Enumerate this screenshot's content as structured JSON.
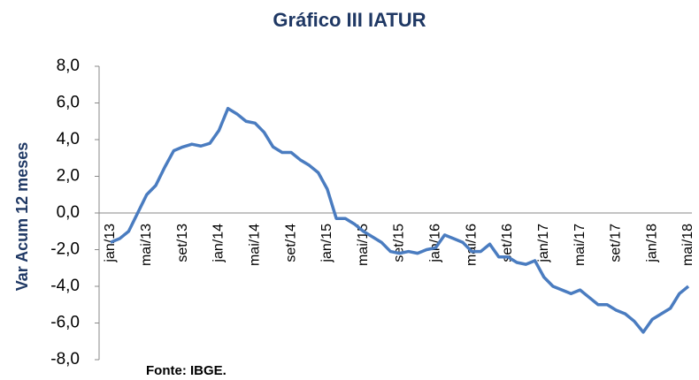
{
  "chart_data": {
    "type": "line",
    "title": "Gráfico III IATUR",
    "y_label": "Var Acum 12 meses",
    "source": "Fonte: IBGE.",
    "categories": [
      "jan/13",
      null,
      null,
      null,
      "mai/13",
      null,
      null,
      null,
      "set/13",
      null,
      null,
      null,
      "jan/14",
      null,
      null,
      null,
      "mai/14",
      null,
      null,
      null,
      "set/14",
      null,
      null,
      null,
      "jan/15",
      null,
      null,
      null,
      "mai/15",
      null,
      null,
      null,
      "set/15",
      null,
      null,
      null,
      "jan/16",
      null,
      null,
      null,
      "mai/16",
      null,
      null,
      null,
      "set/16",
      null,
      null,
      null,
      "jan/17",
      null,
      null,
      null,
      "mai/17",
      null,
      null,
      null,
      "set/17",
      null,
      null,
      null,
      "jan/18",
      null,
      null,
      null,
      "mai/18"
    ],
    "series": [
      {
        "name": "IATUR",
        "color": "#4a7cc0",
        "values": [
          -1.6,
          -1.4,
          -1.0,
          0.0,
          1.0,
          1.5,
          2.5,
          3.4,
          3.6,
          3.75,
          3.65,
          3.8,
          4.5,
          5.7,
          5.4,
          5.0,
          4.9,
          4.4,
          3.6,
          3.3,
          3.3,
          2.9,
          2.6,
          2.2,
          1.3,
          -0.3,
          -0.3,
          -0.6,
          -1.0,
          -1.3,
          -1.6,
          -2.1,
          -2.2,
          -2.1,
          -2.2,
          -2.0,
          -1.9,
          -1.2,
          -1.4,
          -1.6,
          -2.1,
          -2.1,
          -1.7,
          -2.4,
          -2.4,
          -2.7,
          -2.8,
          -2.6,
          -3.5,
          -4.0,
          -4.2,
          -4.4,
          -4.2,
          -4.6,
          -5.0,
          -5.0,
          -5.3,
          -5.5,
          -5.9,
          -6.5,
          -5.8,
          -5.5,
          -5.2,
          -4.4,
          -4.0
        ]
      }
    ],
    "ylim": [
      -8,
      8
    ],
    "yticks": [
      {
        "value": -8,
        "label": "-8,0"
      },
      {
        "value": -6,
        "label": "-6,0"
      },
      {
        "value": -4,
        "label": "-4,0"
      },
      {
        "value": -2,
        "label": "-2,0"
      },
      {
        "value": 0,
        "label": "0,0"
      },
      {
        "value": 2,
        "label": "2,0"
      },
      {
        "value": 4,
        "label": "4,0"
      },
      {
        "value": 6,
        "label": "6,0"
      },
      {
        "value": 8,
        "label": "8,0"
      }
    ]
  }
}
